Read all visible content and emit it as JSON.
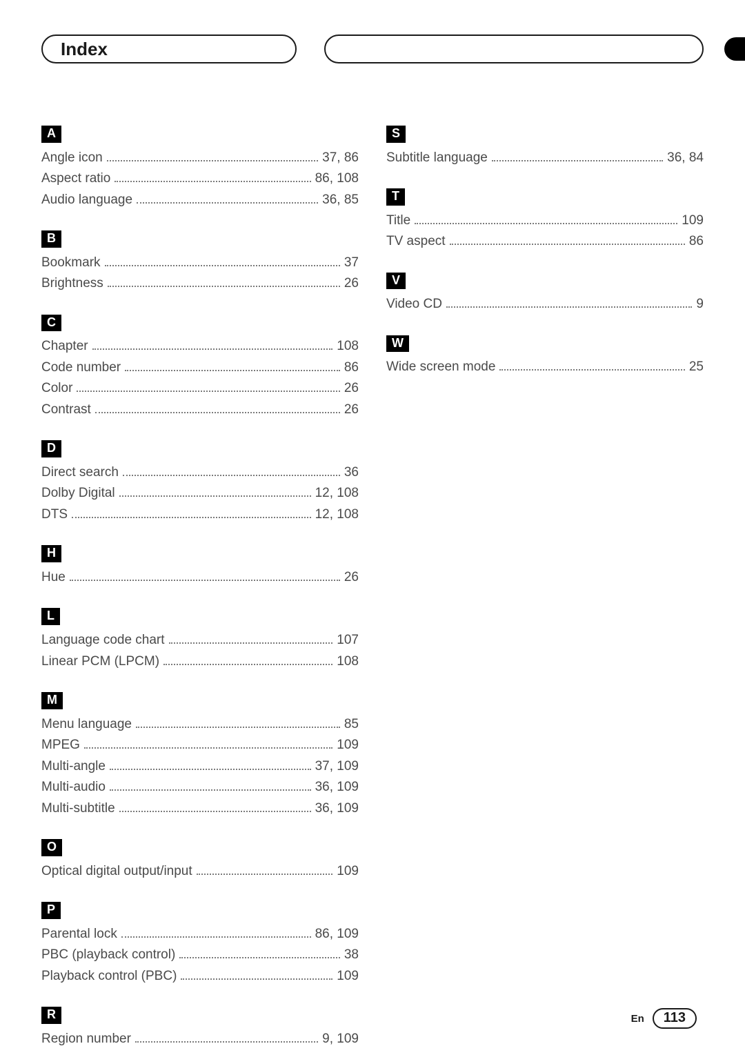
{
  "header": {
    "title": "Index"
  },
  "footer": {
    "lang": "En",
    "page": "113"
  },
  "colors": {
    "text": "#3a3a3a",
    "badge_bg": "#000000",
    "badge_fg": "#ffffff",
    "border": "#1a1a1a",
    "dot": "#7a7a7a",
    "background": "#ffffff"
  },
  "typography": {
    "title_fontsize_pt": 20,
    "entry_fontsize_pt": 14,
    "badge_fontsize_pt": 13,
    "footer_page_fontsize_pt": 15,
    "font_family": "Helvetica Neue"
  },
  "left": [
    {
      "letter": "A",
      "entries": [
        {
          "term": "Angle icon",
          "pages": "37, 86"
        },
        {
          "term": "Aspect ratio",
          "pages": "86, 108"
        },
        {
          "term": "Audio language",
          "pages": "36, 85"
        }
      ]
    },
    {
      "letter": "B",
      "entries": [
        {
          "term": "Bookmark",
          "pages": "37"
        },
        {
          "term": "Brightness",
          "pages": "26"
        }
      ]
    },
    {
      "letter": "C",
      "entries": [
        {
          "term": "Chapter",
          "pages": "108"
        },
        {
          "term": "Code number",
          "pages": "86"
        },
        {
          "term": "Color",
          "pages": "26"
        },
        {
          "term": "Contrast",
          "pages": "26"
        }
      ]
    },
    {
      "letter": "D",
      "entries": [
        {
          "term": "Direct search",
          "pages": "36"
        },
        {
          "term": "Dolby Digital",
          "pages": "12, 108"
        },
        {
          "term": "DTS",
          "pages": "12, 108"
        }
      ]
    },
    {
      "letter": "H",
      "entries": [
        {
          "term": "Hue",
          "pages": "26"
        }
      ]
    },
    {
      "letter": "L",
      "entries": [
        {
          "term": "Language code chart",
          "pages": "107"
        },
        {
          "term": "Linear PCM (LPCM)",
          "pages": "108"
        }
      ]
    },
    {
      "letter": "M",
      "entries": [
        {
          "term": "Menu language",
          "pages": "85"
        },
        {
          "term": "MPEG",
          "pages": "109"
        },
        {
          "term": "Multi-angle",
          "pages": "37, 109"
        },
        {
          "term": "Multi-audio",
          "pages": "36, 109"
        },
        {
          "term": "Multi-subtitle",
          "pages": "36, 109"
        }
      ]
    },
    {
      "letter": "O",
      "entries": [
        {
          "term": "Optical digital output/input",
          "pages": "109"
        }
      ]
    },
    {
      "letter": "P",
      "entries": [
        {
          "term": "Parental lock",
          "pages": "86, 109"
        },
        {
          "term": "PBC (playback control)",
          "pages": "38"
        },
        {
          "term": "Playback control (PBC)",
          "pages": "109"
        }
      ]
    },
    {
      "letter": "R",
      "entries": [
        {
          "term": "Region number",
          "pages": "9, 109"
        }
      ]
    }
  ],
  "right": [
    {
      "letter": "S",
      "entries": [
        {
          "term": "Subtitle language",
          "pages": "36, 84"
        }
      ]
    },
    {
      "letter": "T",
      "entries": [
        {
          "term": "Title",
          "pages": "109"
        },
        {
          "term": "TV aspect",
          "pages": "86"
        }
      ]
    },
    {
      "letter": "V",
      "entries": [
        {
          "term": "Video CD",
          "pages": "9"
        }
      ]
    },
    {
      "letter": "W",
      "entries": [
        {
          "term": "Wide screen mode",
          "pages": "25"
        }
      ]
    }
  ]
}
